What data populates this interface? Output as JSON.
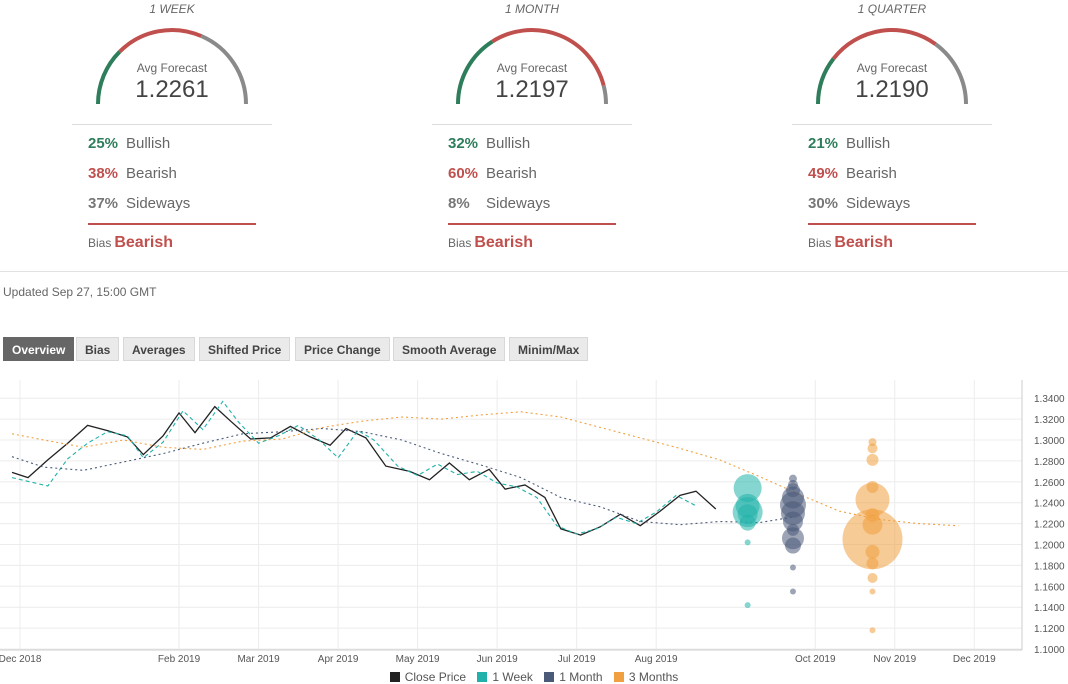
{
  "forecasts": [
    {
      "period": "1 WEEK",
      "avg_label": "Avg Forecast",
      "avg_value": "1.2261",
      "bullish": {
        "pct": "25%",
        "label": "Bullish"
      },
      "bearish": {
        "pct": "38%",
        "label": "Bearish"
      },
      "sideways": {
        "pct": "37%",
        "label": "Sideways"
      },
      "bias_label": "Bias",
      "bias_value": "Bearish",
      "gauge": {
        "bullish": 25,
        "bearish": 38,
        "sideways": 37
      }
    },
    {
      "period": "1 MONTH",
      "avg_label": "Avg Forecast",
      "avg_value": "1.2197",
      "bullish": {
        "pct": "32%",
        "label": "Bullish"
      },
      "bearish": {
        "pct": "60%",
        "label": "Bearish"
      },
      "sideways": {
        "pct": "8%",
        "label": "Sideways"
      },
      "bias_label": "Bias",
      "bias_value": "Bearish",
      "gauge": {
        "bullish": 32,
        "bearish": 60,
        "sideways": 8
      }
    },
    {
      "period": "1 QUARTER",
      "avg_label": "Avg Forecast",
      "avg_value": "1.2190",
      "bullish": {
        "pct": "21%",
        "label": "Bullish"
      },
      "bearish": {
        "pct": "49%",
        "label": "Bearish"
      },
      "sideways": {
        "pct": "30%",
        "label": "Sideways"
      },
      "bias_label": "Bias",
      "bias_value": "Bearish",
      "gauge": {
        "bullish": 21,
        "bearish": 49,
        "sideways": 30
      }
    }
  ],
  "updated": "Updated Sep 27, 15:00 GMT",
  "tabs": [
    "Overview",
    "Bias",
    "Averages",
    "Shifted Price",
    "Price Change",
    "Smooth Average",
    "Minim/Max"
  ],
  "active_tab": "Overview",
  "colors": {
    "bullish": "#2e7d5b",
    "bearish": "#c0504d",
    "sideways": "#8a8a8a",
    "close": "#222222",
    "week": "#20b2aa",
    "month": "#4a5a78",
    "quarter": "#f0a040"
  },
  "chart_data": {
    "type": "line",
    "x_ticks": [
      {
        "label": "Dec 2018",
        "m": 0
      },
      {
        "label": "Feb 2019",
        "m": 2
      },
      {
        "label": "Mar 2019",
        "m": 3
      },
      {
        "label": "Apr 2019",
        "m": 4
      },
      {
        "label": "May 2019",
        "m": 5
      },
      {
        "label": "Jun 2019",
        "m": 6
      },
      {
        "label": "Jul 2019",
        "m": 7
      },
      {
        "label": "Aug 2019",
        "m": 8
      },
      {
        "label": "Oct 2019",
        "m": 10
      },
      {
        "label": "Nov 2019",
        "m": 11
      },
      {
        "label": "Dec 2019",
        "m": 12
      }
    ],
    "x_range": [
      0,
      12.6
    ],
    "y_ticks": [
      "1.3400",
      "1.3200",
      "1.3000",
      "1.2800",
      "1.2600",
      "1.2400",
      "1.2200",
      "1.2000",
      "1.1800",
      "1.1600",
      "1.1400",
      "1.1200",
      "1.1000"
    ],
    "ylim": [
      1.1,
      1.345
    ],
    "grid": true,
    "legend": [
      "Close Price",
      "1 Week",
      "1 Month",
      "3 Months"
    ],
    "series": [
      {
        "name": "Close Price",
        "style": "solid",
        "points": [
          [
            -0.1,
            1.269
          ],
          [
            0.1,
            1.264
          ],
          [
            0.35,
            1.281
          ],
          [
            0.6,
            1.297
          ],
          [
            0.85,
            1.314
          ],
          [
            1.1,
            1.309
          ],
          [
            1.35,
            1.303
          ],
          [
            1.55,
            1.286
          ],
          [
            1.8,
            1.304
          ],
          [
            2.0,
            1.326
          ],
          [
            2.2,
            1.307
          ],
          [
            2.45,
            1.332
          ],
          [
            2.65,
            1.318
          ],
          [
            2.9,
            1.301
          ],
          [
            3.15,
            1.302
          ],
          [
            3.4,
            1.313
          ],
          [
            3.65,
            1.303
          ],
          [
            3.9,
            1.295
          ],
          [
            4.1,
            1.311
          ],
          [
            4.35,
            1.302
          ],
          [
            4.6,
            1.275
          ],
          [
            4.9,
            1.27
          ],
          [
            5.15,
            1.262
          ],
          [
            5.4,
            1.278
          ],
          [
            5.65,
            1.262
          ],
          [
            5.9,
            1.272
          ],
          [
            6.1,
            1.253
          ],
          [
            6.35,
            1.257
          ],
          [
            6.6,
            1.245
          ],
          [
            6.8,
            1.215
          ],
          [
            7.05,
            1.209
          ],
          [
            7.3,
            1.217
          ],
          [
            7.55,
            1.229
          ],
          [
            7.8,
            1.218
          ],
          [
            8.05,
            1.232
          ],
          [
            8.3,
            1.247
          ],
          [
            8.5,
            1.251
          ],
          [
            8.75,
            1.234
          ]
        ]
      },
      {
        "name": "1 Week",
        "style": "dashed",
        "points": [
          [
            -0.1,
            1.264
          ],
          [
            0.35,
            1.256
          ],
          [
            0.6,
            1.282
          ],
          [
            0.85,
            1.297
          ],
          [
            1.1,
            1.308
          ],
          [
            1.35,
            1.304
          ],
          [
            1.55,
            1.283
          ],
          [
            1.8,
            1.298
          ],
          [
            2.05,
            1.328
          ],
          [
            2.3,
            1.31
          ],
          [
            2.55,
            1.337
          ],
          [
            2.75,
            1.317
          ],
          [
            3.0,
            1.297
          ],
          [
            3.25,
            1.304
          ],
          [
            3.5,
            1.314
          ],
          [
            3.75,
            1.301
          ],
          [
            4.0,
            1.283
          ],
          [
            4.25,
            1.309
          ],
          [
            4.45,
            1.3
          ],
          [
            4.75,
            1.275
          ],
          [
            5.0,
            1.266
          ],
          [
            5.25,
            1.277
          ],
          [
            5.5,
            1.267
          ],
          [
            5.75,
            1.27
          ],
          [
            6.0,
            1.259
          ],
          [
            6.25,
            1.255
          ],
          [
            6.5,
            1.245
          ],
          [
            6.75,
            1.218
          ],
          [
            7.0,
            1.21
          ],
          [
            7.25,
            1.215
          ],
          [
            7.5,
            1.226
          ],
          [
            7.75,
            1.22
          ],
          [
            8.0,
            1.231
          ],
          [
            8.25,
            1.247
          ],
          [
            8.5,
            1.237
          ]
        ]
      },
      {
        "name": "1 Month",
        "style": "dotted",
        "points": [
          [
            -0.1,
            1.284
          ],
          [
            0.3,
            1.274
          ],
          [
            0.8,
            1.271
          ],
          [
            1.3,
            1.279
          ],
          [
            1.8,
            1.287
          ],
          [
            2.3,
            1.297
          ],
          [
            2.8,
            1.306
          ],
          [
            3.3,
            1.308
          ],
          [
            3.8,
            1.311
          ],
          [
            4.3,
            1.308
          ],
          [
            4.8,
            1.3
          ],
          [
            5.3,
            1.287
          ],
          [
            5.8,
            1.276
          ],
          [
            6.3,
            1.264
          ],
          [
            6.8,
            1.245
          ],
          [
            7.3,
            1.236
          ],
          [
            7.8,
            1.222
          ],
          [
            8.3,
            1.219
          ],
          [
            8.8,
            1.222
          ],
          [
            9.3,
            1.221
          ],
          [
            9.7,
            1.226
          ]
        ]
      },
      {
        "name": "3 Months",
        "style": "dotted",
        "points": [
          [
            -0.1,
            1.306
          ],
          [
            0.3,
            1.3
          ],
          [
            0.8,
            1.293
          ],
          [
            1.3,
            1.3
          ],
          [
            1.8,
            1.293
          ],
          [
            2.3,
            1.291
          ],
          [
            2.8,
            1.299
          ],
          [
            3.3,
            1.301
          ],
          [
            3.8,
            1.312
          ],
          [
            4.3,
            1.318
          ],
          [
            4.8,
            1.322
          ],
          [
            5.3,
            1.32
          ],
          [
            5.8,
            1.324
          ],
          [
            6.3,
            1.327
          ],
          [
            6.8,
            1.322
          ],
          [
            7.3,
            1.312
          ],
          [
            7.8,
            1.302
          ],
          [
            8.3,
            1.292
          ],
          [
            8.8,
            1.281
          ],
          [
            9.3,
            1.265
          ],
          [
            9.8,
            1.248
          ],
          [
            10.3,
            1.232
          ],
          [
            10.8,
            1.224
          ],
          [
            11.3,
            1.22
          ],
          [
            11.8,
            1.218
          ]
        ]
      }
    ],
    "bubbles": [
      {
        "series": "1 Week",
        "m": 9.15,
        "values": [
          1.254,
          1.237,
          1.231,
          1.229,
          1.221,
          1.202,
          1.142
        ]
      },
      {
        "series": "1 Month",
        "m": 9.72,
        "values": [
          1.263,
          1.257,
          1.252,
          1.245,
          1.238,
          1.23,
          1.222,
          1.214,
          1.206,
          1.199,
          1.178,
          1.155
        ]
      },
      {
        "series": "3 Months",
        "m": 10.72,
        "values": [
          1.298,
          1.292,
          1.281,
          1.255,
          1.243,
          1.228,
          1.219,
          1.205,
          1.193,
          1.182,
          1.168,
          1.155,
          1.118
        ]
      }
    ]
  }
}
